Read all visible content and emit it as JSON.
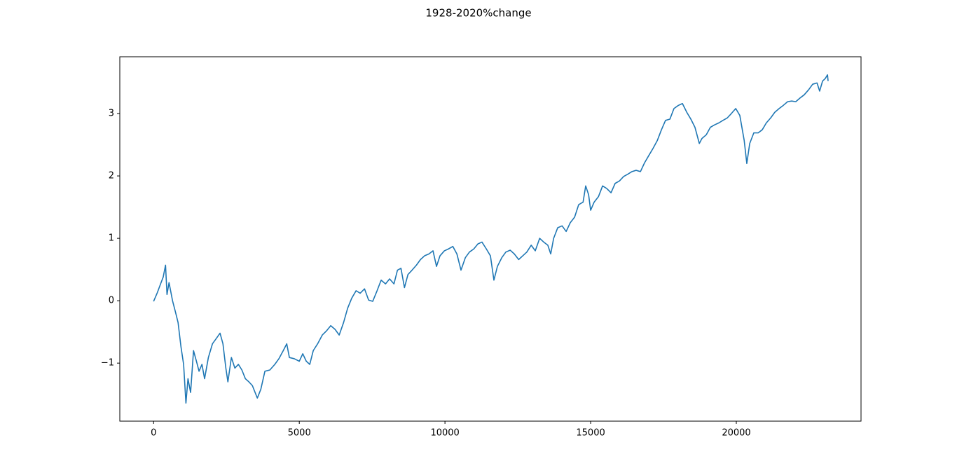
{
  "chart_data": {
    "type": "line",
    "title": "1928-2020%change",
    "x": [
      0,
      120,
      240,
      330,
      410,
      460,
      530,
      650,
      750,
      840,
      940,
      1030,
      1110,
      1180,
      1270,
      1370,
      1470,
      1560,
      1660,
      1750,
      1880,
      2020,
      2160,
      2280,
      2380,
      2480,
      2550,
      2670,
      2790,
      2910,
      3030,
      3150,
      3270,
      3390,
      3560,
      3680,
      3820,
      3990,
      4160,
      4300,
      4450,
      4570,
      4660,
      4830,
      5000,
      5120,
      5240,
      5360,
      5480,
      5630,
      5790,
      5940,
      6080,
      6230,
      6370,
      6520,
      6660,
      6800,
      6950,
      7090,
      7240,
      7380,
      7520,
      7670,
      7810,
      7960,
      8100,
      8250,
      8370,
      8490,
      8610,
      8730,
      8870,
      9020,
      9160,
      9300,
      9450,
      9590,
      9710,
      9830,
      9980,
      10120,
      10270,
      10410,
      10550,
      10700,
      10840,
      10990,
      11130,
      11270,
      11420,
      11560,
      11680,
      11800,
      11950,
      12090,
      12240,
      12380,
      12530,
      12670,
      12810,
      12960,
      13100,
      13250,
      13390,
      13530,
      13630,
      13730,
      13870,
      14020,
      14160,
      14300,
      14450,
      14590,
      14740,
      14830,
      14930,
      15000,
      15120,
      15270,
      15410,
      15550,
      15700,
      15840,
      15990,
      16130,
      16280,
      16420,
      16560,
      16710,
      16850,
      17000,
      17140,
      17290,
      17430,
      17570,
      17720,
      17860,
      18010,
      18150,
      18300,
      18440,
      18580,
      18730,
      18820,
      18970,
      19110,
      19260,
      19400,
      19540,
      19690,
      19830,
      19980,
      20120,
      20270,
      20360,
      20460,
      20600,
      20750,
      20890,
      21030,
      21180,
      21320,
      21470,
      21610,
      21760,
      21900,
      22040,
      22190,
      22330,
      22480,
      22620,
      22770,
      22860,
      22960,
      23050,
      23130,
      23150
    ],
    "series": [
      {
        "color": "#1f77b4",
        "values": [
          -0.01,
          0.12,
          0.27,
          0.38,
          0.57,
          0.1,
          0.29,
          0,
          -0.18,
          -0.35,
          -0.74,
          -1.02,
          -1.64,
          -1.25,
          -1.47,
          -0.8,
          -0.97,
          -1.13,
          -1.02,
          -1.25,
          -0.91,
          -0.69,
          -0.6,
          -0.52,
          -0.69,
          -1.08,
          -1.3,
          -0.91,
          -1.08,
          -1.02,
          -1.11,
          -1.25,
          -1.3,
          -1.36,
          -1.56,
          -1.42,
          -1.13,
          -1.11,
          -1.02,
          -0.93,
          -0.8,
          -0.69,
          -0.91,
          -0.93,
          -0.97,
          -0.85,
          -0.97,
          -1.02,
          -0.8,
          -0.69,
          -0.55,
          -0.48,
          -0.4,
          -0.46,
          -0.55,
          -0.35,
          -0.12,
          0.04,
          0.16,
          0.12,
          0.19,
          0.01,
          -0.01,
          0.16,
          0.33,
          0.27,
          0.35,
          0.27,
          0.49,
          0.52,
          0.21,
          0.42,
          0.49,
          0.57,
          0.66,
          0.72,
          0.75,
          0.8,
          0.55,
          0.72,
          0.8,
          0.83,
          0.87,
          0.75,
          0.49,
          0.69,
          0.78,
          0.83,
          0.91,
          0.94,
          0.83,
          0.72,
          0.33,
          0.55,
          0.69,
          0.78,
          0.81,
          0.75,
          0.66,
          0.72,
          0.78,
          0.89,
          0.8,
          1.0,
          0.94,
          0.89,
          0.75,
          1.0,
          1.17,
          1.2,
          1.11,
          1.25,
          1.34,
          1.54,
          1.58,
          1.84,
          1.7,
          1.45,
          1.58,
          1.67,
          1.84,
          1.8,
          1.73,
          1.88,
          1.92,
          1.99,
          2.03,
          2.07,
          2.09,
          2.07,
          2.21,
          2.33,
          2.44,
          2.57,
          2.74,
          2.89,
          2.91,
          3.08,
          3.13,
          3.16,
          3.02,
          2.91,
          2.78,
          2.52,
          2.6,
          2.66,
          2.78,
          2.82,
          2.85,
          2.89,
          2.93,
          3.0,
          3.08,
          2.97,
          2.57,
          2.2,
          2.52,
          2.69,
          2.69,
          2.74,
          2.85,
          2.93,
          3.02,
          3.08,
          3.13,
          3.19,
          3.2,
          3.19,
          3.25,
          3.3,
          3.38,
          3.47,
          3.49,
          3.36,
          3.52,
          3.56,
          3.62,
          3.52
        ]
      }
    ],
    "xlim": [
      -1160,
      24280
    ],
    "ylim": [
      -1.93,
      3.91
    ],
    "xticks": [
      0,
      5000,
      10000,
      15000,
      20000
    ],
    "yticks": [
      {
        "value": -1,
        "label": "−1"
      },
      0,
      1,
      2,
      3
    ]
  }
}
